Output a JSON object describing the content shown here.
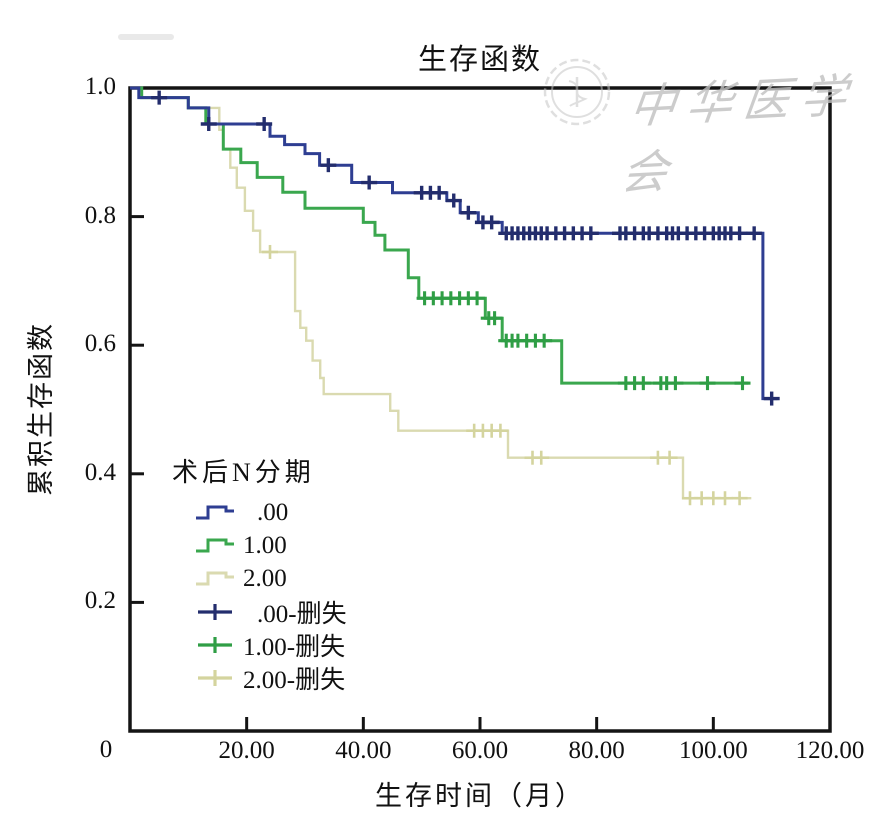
{
  "title": "生存函数",
  "watermark": {
    "text": "中华医学会",
    "seal": "chinese-medical-association-seal"
  },
  "chart_data": {
    "type": "line",
    "subtype": "kaplan-meier-step",
    "title": "生存函数",
    "xlabel": "生存时间（月）",
    "ylabel": "累积生存函数",
    "origin_label": "0",
    "xlim": [
      0,
      120
    ],
    "ylim": [
      0,
      1.0
    ],
    "grid": false,
    "legend_position": "inside-left",
    "legend_title": "术后N分期",
    "x_ticks": [
      {
        "value": 20,
        "label": "20.00",
        "tick": true
      },
      {
        "value": 40,
        "label": "40.00",
        "tick": true
      },
      {
        "value": 60,
        "label": "60.00",
        "tick": true
      },
      {
        "value": 80,
        "label": "80.00",
        "tick": true
      },
      {
        "value": 100,
        "label": "100.00",
        "tick": true
      },
      {
        "value": 120,
        "label": "120.00",
        "tick": false
      }
    ],
    "y_ticks": [
      {
        "value": 1.0,
        "label": "1.0",
        "tick": false
      },
      {
        "value": 0.8,
        "label": "0.8",
        "tick": true
      },
      {
        "value": 0.6,
        "label": "0.6",
        "tick": true
      },
      {
        "value": 0.4,
        "label": "0.4",
        "tick": true
      },
      {
        "value": 0.2,
        "label": "0.2",
        "tick": true
      }
    ],
    "series": [
      {
        "name": ".00",
        "color": "#2e3e92",
        "censor_color": "#232d6d",
        "line_width": 3,
        "marker_width": 3.4,
        "end_time": 111,
        "steps": [
          [
            0,
            1.0
          ],
          [
            1.5,
            0.985
          ],
          [
            10,
            0.969
          ],
          [
            13.5,
            0.944
          ],
          [
            24,
            0.925
          ],
          [
            26.5,
            0.912
          ],
          [
            30,
            0.898
          ],
          [
            32.5,
            0.88
          ],
          [
            38,
            0.853
          ],
          [
            45,
            0.837
          ],
          [
            54.3,
            0.825
          ],
          [
            56.6,
            0.806
          ],
          [
            59.7,
            0.791
          ],
          [
            63.8,
            0.774
          ],
          [
            108.5,
            0.517
          ]
        ],
        "censor_times": [
          5,
          13.5,
          23,
          34,
          41,
          50,
          51.5,
          53,
          55.5,
          58,
          60.5,
          62,
          64.5,
          65.5,
          66.5,
          67.5,
          68.5,
          69.5,
          70.5,
          71.5,
          73,
          74.5,
          76,
          77.5,
          79,
          84,
          85,
          86.5,
          88,
          89,
          90.5,
          92,
          93,
          94,
          95.5,
          97,
          98.5,
          100,
          101,
          102,
          103,
          104.5,
          107,
          110
        ]
      },
      {
        "name": "1.00",
        "color": "#3aa74e",
        "censor_color": "#2f9e45",
        "line_width": 3,
        "marker_width": 3.1,
        "end_time": 106,
        "steps": [
          [
            0,
            1.0
          ],
          [
            2,
            0.985
          ],
          [
            10,
            0.969
          ],
          [
            13,
            0.944
          ],
          [
            16,
            0.905
          ],
          [
            19,
            0.884
          ],
          [
            21.8,
            0.861
          ],
          [
            26.2,
            0.838
          ],
          [
            30,
            0.813
          ],
          [
            40,
            0.791
          ],
          [
            42,
            0.771
          ],
          [
            43.7,
            0.748
          ],
          [
            47.7,
            0.705
          ],
          [
            49.5,
            0.673
          ],
          [
            60.9,
            0.642
          ],
          [
            63.8,
            0.607
          ],
          [
            74,
            0.541
          ]
        ],
        "censor_times": [
          50.5,
          52,
          53.5,
          55,
          56.5,
          58,
          59.5,
          61.5,
          62.5,
          64.5,
          65.5,
          66.5,
          68,
          69.5,
          71,
          85,
          86.5,
          88,
          91,
          92,
          93.5,
          99,
          105
        ]
      },
      {
        "name": "2.00",
        "color": "#dadab0",
        "censor_color": "#d4d49e",
        "line_width": 2.4,
        "marker_width": 2.6,
        "end_time": 106.5,
        "steps": [
          [
            0,
            1.0
          ],
          [
            2,
            0.985
          ],
          [
            10,
            0.969
          ],
          [
            15.3,
            0.935
          ],
          [
            16,
            0.905
          ],
          [
            17.2,
            0.876
          ],
          [
            18.3,
            0.845
          ],
          [
            19.7,
            0.809
          ],
          [
            21.1,
            0.778
          ],
          [
            22.3,
            0.745
          ],
          [
            28.3,
            0.653
          ],
          [
            29.2,
            0.627
          ],
          [
            30.2,
            0.607
          ],
          [
            31.3,
            0.576
          ],
          [
            32.6,
            0.549
          ],
          [
            33.2,
            0.524
          ],
          [
            44.6,
            0.498
          ],
          [
            46,
            0.467
          ],
          [
            64.8,
            0.425
          ],
          [
            94.8,
            0.362
          ]
        ],
        "censor_times": [
          24,
          59,
          60.5,
          62,
          63.5,
          69,
          70.5,
          90.5,
          92.5,
          96,
          98,
          100,
          102,
          104.5
        ]
      }
    ],
    "legend_items": [
      {
        "label": ".00",
        "marker": "step",
        "color": "#2e3e92"
      },
      {
        "label": "1.00",
        "marker": "step",
        "color": "#3aa74e"
      },
      {
        "label": "2.00",
        "marker": "step",
        "color": "#dadab0"
      },
      {
        "label": ".00-删失",
        "marker": "plus",
        "color": "#232d6d"
      },
      {
        "label": "1.00-删失",
        "marker": "plus",
        "color": "#2f9e45"
      },
      {
        "label": "2.00-删失",
        "marker": "plus",
        "color": "#d4d49e"
      }
    ]
  }
}
